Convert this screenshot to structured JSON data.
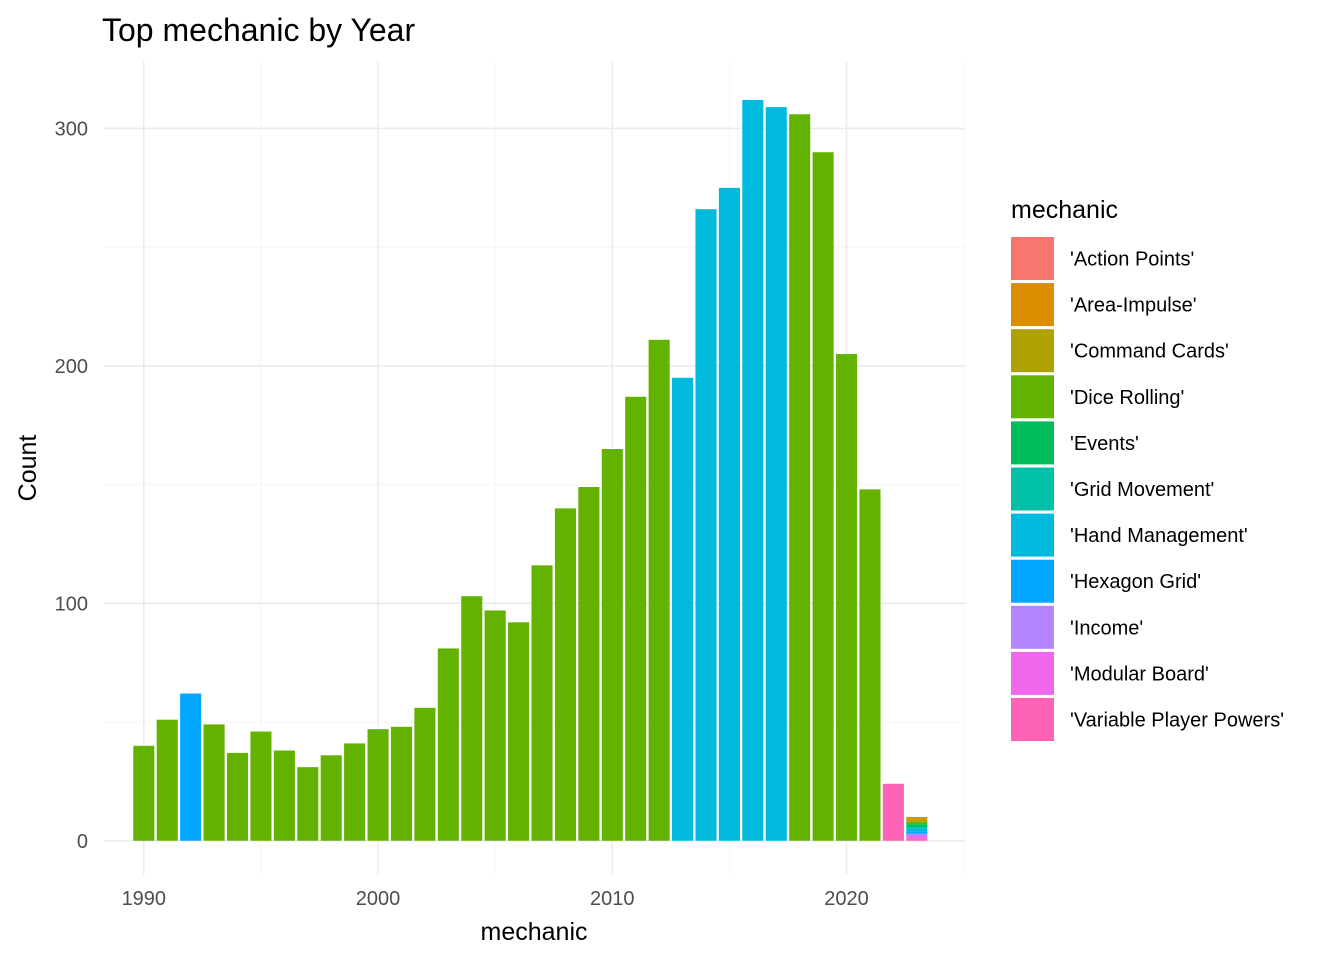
{
  "chart_data": {
    "type": "bar",
    "title": "Top mechanic by Year",
    "xlabel": "mechanic",
    "ylabel": "Count",
    "xlim": [
      1988.3,
      2025.1
    ],
    "ylim": [
      -14,
      328
    ],
    "x_ticks": [
      1990,
      2000,
      2010,
      2020
    ],
    "y_ticks": [
      0,
      100,
      200,
      300
    ],
    "grid": true,
    "legend": {
      "title": "mechanic",
      "position": "right",
      "entries": [
        {
          "name": "'Action Points'",
          "color": "#F8766D"
        },
        {
          "name": "'Area-Impulse'",
          "color": "#DB8E00"
        },
        {
          "name": "'Command Cards'",
          "color": "#AEA200"
        },
        {
          "name": "'Dice Rolling'",
          "color": "#64B200"
        },
        {
          "name": "'Events'",
          "color": "#00BD5C"
        },
        {
          "name": "'Grid Movement'",
          "color": "#00C1A7"
        },
        {
          "name": "'Hand Management'",
          "color": "#00BADE"
        },
        {
          "name": "'Hexagon Grid'",
          "color": "#00A6FF"
        },
        {
          "name": "'Income'",
          "color": "#B385FF"
        },
        {
          "name": "'Modular Board'",
          "color": "#EF67EB"
        },
        {
          "name": "'Variable Player Powers'",
          "color": "#FF63B6"
        }
      ]
    },
    "bars": [
      {
        "x": 1990,
        "segments": [
          {
            "mechanic": "'Dice Rolling'",
            "value": 40
          }
        ]
      },
      {
        "x": 1991,
        "segments": [
          {
            "mechanic": "'Dice Rolling'",
            "value": 51
          }
        ]
      },
      {
        "x": 1992,
        "segments": [
          {
            "mechanic": "'Hexagon Grid'",
            "value": 62
          }
        ]
      },
      {
        "x": 1993,
        "segments": [
          {
            "mechanic": "'Dice Rolling'",
            "value": 49
          }
        ]
      },
      {
        "x": 1994,
        "segments": [
          {
            "mechanic": "'Dice Rolling'",
            "value": 37
          }
        ]
      },
      {
        "x": 1995,
        "segments": [
          {
            "mechanic": "'Dice Rolling'",
            "value": 46
          }
        ]
      },
      {
        "x": 1996,
        "segments": [
          {
            "mechanic": "'Dice Rolling'",
            "value": 38
          }
        ]
      },
      {
        "x": 1997,
        "segments": [
          {
            "mechanic": "'Dice Rolling'",
            "value": 31
          }
        ]
      },
      {
        "x": 1998,
        "segments": [
          {
            "mechanic": "'Dice Rolling'",
            "value": 36
          }
        ]
      },
      {
        "x": 1999,
        "segments": [
          {
            "mechanic": "'Dice Rolling'",
            "value": 41
          }
        ]
      },
      {
        "x": 2000,
        "segments": [
          {
            "mechanic": "'Dice Rolling'",
            "value": 47
          }
        ]
      },
      {
        "x": 2001,
        "segments": [
          {
            "mechanic": "'Dice Rolling'",
            "value": 48
          }
        ]
      },
      {
        "x": 2002,
        "segments": [
          {
            "mechanic": "'Dice Rolling'",
            "value": 56
          }
        ]
      },
      {
        "x": 2003,
        "segments": [
          {
            "mechanic": "'Dice Rolling'",
            "value": 81
          }
        ]
      },
      {
        "x": 2004,
        "segments": [
          {
            "mechanic": "'Dice Rolling'",
            "value": 103
          }
        ]
      },
      {
        "x": 2005,
        "segments": [
          {
            "mechanic": "'Dice Rolling'",
            "value": 97
          }
        ]
      },
      {
        "x": 2006,
        "segments": [
          {
            "mechanic": "'Dice Rolling'",
            "value": 92
          }
        ]
      },
      {
        "x": 2007,
        "segments": [
          {
            "mechanic": "'Dice Rolling'",
            "value": 116
          }
        ]
      },
      {
        "x": 2008,
        "segments": [
          {
            "mechanic": "'Dice Rolling'",
            "value": 140
          }
        ]
      },
      {
        "x": 2009,
        "segments": [
          {
            "mechanic": "'Dice Rolling'",
            "value": 149
          }
        ]
      },
      {
        "x": 2010,
        "segments": [
          {
            "mechanic": "'Dice Rolling'",
            "value": 165
          }
        ]
      },
      {
        "x": 2011,
        "segments": [
          {
            "mechanic": "'Dice Rolling'",
            "value": 187
          }
        ]
      },
      {
        "x": 2012,
        "segments": [
          {
            "mechanic": "'Dice Rolling'",
            "value": 211
          }
        ]
      },
      {
        "x": 2013,
        "segments": [
          {
            "mechanic": "'Hand Management'",
            "value": 195
          }
        ]
      },
      {
        "x": 2014,
        "segments": [
          {
            "mechanic": "'Hand Management'",
            "value": 266
          }
        ]
      },
      {
        "x": 2015,
        "segments": [
          {
            "mechanic": "'Hand Management'",
            "value": 275
          }
        ]
      },
      {
        "x": 2016,
        "segments": [
          {
            "mechanic": "'Hand Management'",
            "value": 312
          }
        ]
      },
      {
        "x": 2017,
        "segments": [
          {
            "mechanic": "'Hand Management'",
            "value": 309
          }
        ]
      },
      {
        "x": 2018,
        "segments": [
          {
            "mechanic": "'Dice Rolling'",
            "value": 306
          }
        ]
      },
      {
        "x": 2019,
        "segments": [
          {
            "mechanic": "'Dice Rolling'",
            "value": 290
          }
        ]
      },
      {
        "x": 2020,
        "segments": [
          {
            "mechanic": "'Dice Rolling'",
            "value": 205
          }
        ]
      },
      {
        "x": 2021,
        "segments": [
          {
            "mechanic": "'Dice Rolling'",
            "value": 148
          }
        ]
      },
      {
        "x": 2022,
        "segments": [
          {
            "mechanic": "'Variable Player Powers'",
            "value": 24
          }
        ]
      },
      {
        "x": 2023,
        "segments": [
          {
            "mechanic": "'Variable Player Powers'",
            "value": 1
          },
          {
            "mechanic": "'Modular Board'",
            "value": 1
          },
          {
            "mechanic": "'Income'",
            "value": 1
          },
          {
            "mechanic": "'Hexagon Grid'",
            "value": 1
          },
          {
            "mechanic": "'Hand Management'",
            "value": 1
          },
          {
            "mechanic": "'Grid Movement'",
            "value": 1
          },
          {
            "mechanic": "'Events'",
            "value": 1
          },
          {
            "mechanic": "'Dice Rolling'",
            "value": 1
          },
          {
            "mechanic": "'Command Cards'",
            "value": 1
          },
          {
            "mechanic": "'Area-Impulse'",
            "value": 1
          }
        ]
      }
    ]
  }
}
